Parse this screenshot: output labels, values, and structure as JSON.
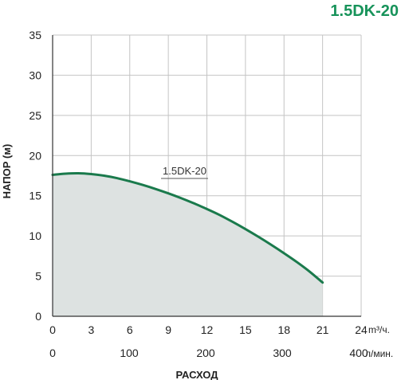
{
  "chart_data": {
    "type": "area",
    "title": "1.5DK-20",
    "ylabel": "НАПОР (м)",
    "xlabel": "РАСХОД",
    "x_unit_primary": "m³/ч.",
    "x_unit_secondary": "л/мин.",
    "ylim": [
      0,
      35
    ],
    "y_ticks": [
      "0",
      "5",
      "10",
      "15",
      "20",
      "25",
      "30",
      "35"
    ],
    "xlim_primary": [
      0,
      24
    ],
    "x_ticks_primary": [
      "0",
      "3",
      "6",
      "9",
      "12",
      "15",
      "18",
      "21",
      "24"
    ],
    "x_ticks_secondary": [
      "0",
      "100",
      "200",
      "300",
      "400"
    ],
    "grid": true,
    "series": [
      {
        "name": "1.5DK-20",
        "x": [
          0,
          1,
          2,
          3,
          4,
          5,
          6,
          7,
          8,
          9,
          10,
          11,
          12,
          13,
          14,
          15,
          16,
          17,
          18,
          19,
          20,
          21
        ],
        "y": [
          17.6,
          17.75,
          17.8,
          17.7,
          17.5,
          17.2,
          16.8,
          16.35,
          15.85,
          15.3,
          14.7,
          14.05,
          13.35,
          12.6,
          11.75,
          10.85,
          9.9,
          8.9,
          7.85,
          6.75,
          5.55,
          4.2
        ]
      }
    ],
    "colors": {
      "title": "#17935a",
      "line": "#1a7a4c",
      "fill": "#dde2e1",
      "grid": "#c4c4c4",
      "axis": "#333333"
    }
  }
}
